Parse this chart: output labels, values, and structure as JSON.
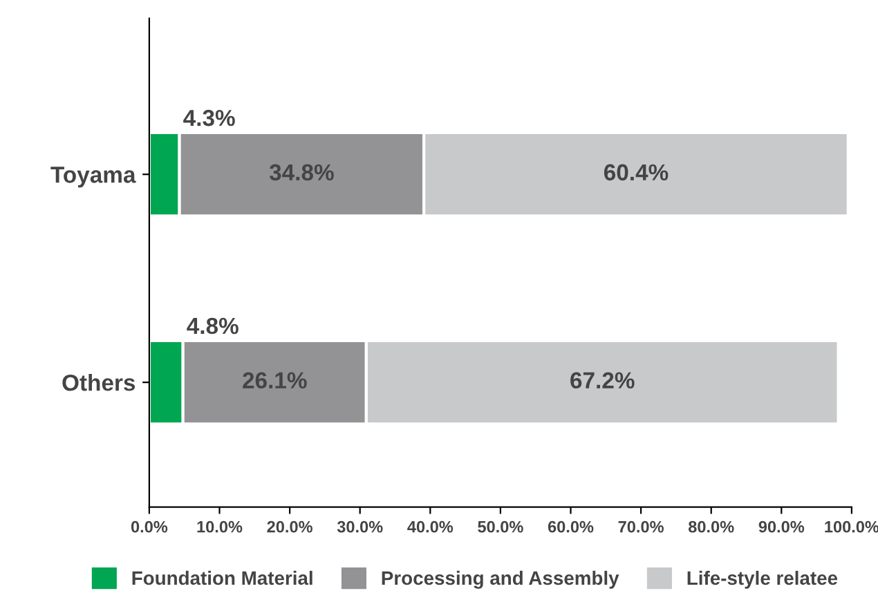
{
  "chart_data": {
    "type": "bar",
    "orientation": "horizontal",
    "stacked": true,
    "categories": [
      "Toyama",
      "Others"
    ],
    "series": [
      {
        "name": "Foundation Material",
        "color": "#00a651",
        "values": [
          4.3,
          4.8
        ],
        "value_labels": [
          "4.3%",
          "4.8%"
        ]
      },
      {
        "name": "Processing and Assembly",
        "color": "#939396",
        "values": [
          34.8,
          26.1
        ],
        "value_labels": [
          "34.8%",
          "26.1%"
        ]
      },
      {
        "name": "Life-style relatee",
        "color": "#c8c9cb",
        "values": [
          60.4,
          67.2
        ],
        "value_labels": [
          "60.4%",
          "67.2%"
        ]
      }
    ],
    "xlim": [
      0,
      100
    ],
    "xticks": [
      {
        "value": 0,
        "label": "0.0%"
      },
      {
        "value": 10,
        "label": "10.0%"
      },
      {
        "value": 20,
        "label": "20.0%"
      },
      {
        "value": 30,
        "label": "30.0%"
      },
      {
        "value": 40,
        "label": "40.0%"
      },
      {
        "value": 50,
        "label": "50.0%"
      },
      {
        "value": 60,
        "label": "60.0%"
      },
      {
        "value": 70,
        "label": "70.0%"
      },
      {
        "value": 80,
        "label": "80.0%"
      },
      {
        "value": 90,
        "label": "90.0%"
      },
      {
        "value": 100,
        "label": "100.0%"
      }
    ],
    "legend": "bottom",
    "grid": false
  }
}
